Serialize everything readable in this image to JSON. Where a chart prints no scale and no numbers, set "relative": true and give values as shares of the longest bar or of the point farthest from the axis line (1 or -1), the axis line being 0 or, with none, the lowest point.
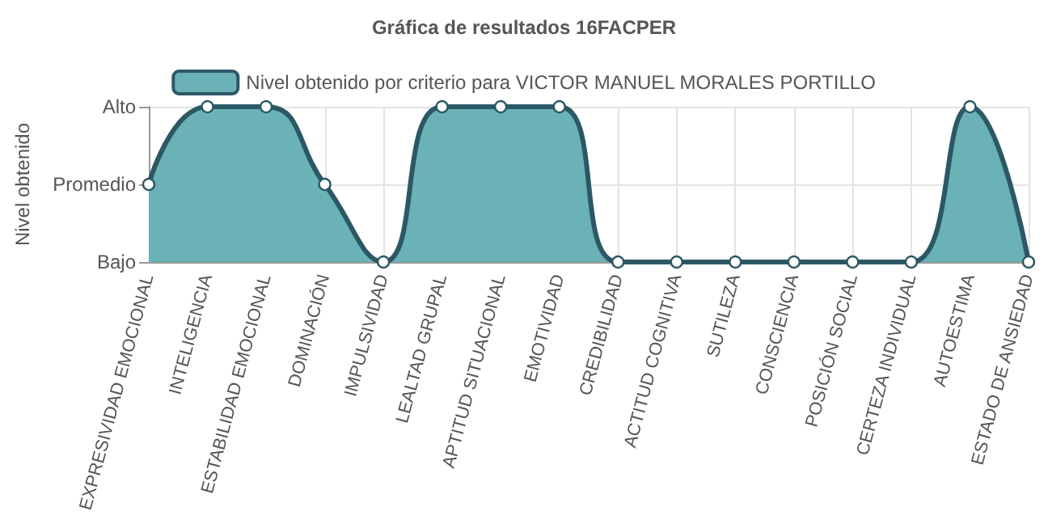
{
  "chart_data": {
    "type": "area",
    "title": "Gráfica de resultados 16FACPER",
    "ylabel": "Nivel obtenido",
    "categories": [
      "EXPRESIVIDAD EMOCIONAL",
      "INTELIGENCIA",
      "ESTABILIDAD EMOCIONAL",
      "DOMINACIÓN",
      "IMPULSIVIDAD",
      "LEALTAD GRUPAL",
      "APTITUD SITUACIONAL",
      "EMOTIVIDAD",
      "CREDIBILIDAD",
      "ACTITUD COGNITIVA",
      "SUTILEZA",
      "CONSCIENCIA",
      "POSICIÓN SOCIAL",
      "CERTEZA INDIVIDUAL",
      "AUTOESTIMA",
      "ESTADO DE ANSIEDAD"
    ],
    "y_categories": [
      "Alto",
      "Promedio",
      "Bajo"
    ],
    "series": [
      {
        "name": "Nivel obtenido por criterio para VICTOR MANUEL MORALES PORTILLO",
        "color": "#6ab2b5",
        "values": [
          0.5,
          1,
          1,
          0.5,
          0,
          1,
          1,
          1,
          0,
          0,
          0,
          0,
          0,
          0,
          1,
          0
        ]
      }
    ],
    "relative": true,
    "grid": true,
    "legend": "top",
    "marker": "circle"
  }
}
